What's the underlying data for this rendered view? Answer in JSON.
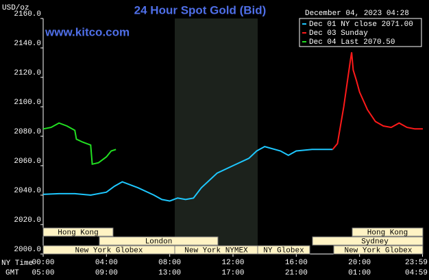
{
  "chart_data": {
    "type": "line",
    "title": "24 Hour Spot Gold (Bid)",
    "website": "www.kitco.com",
    "unit_label": "USD/oz",
    "timestamp": "December 04, 2023 04:28",
    "x_row_labels": [
      "NY Time",
      "GMT"
    ],
    "xlim": [
      0,
      24
    ],
    "xticks": [
      {
        "value": 0,
        "label": "00:00"
      },
      {
        "value": 4,
        "label": "04:00"
      },
      {
        "value": 8,
        "label": "08:00"
      },
      {
        "value": 12,
        "label": "12:00"
      },
      {
        "value": 16,
        "label": "16:00"
      },
      {
        "value": 20,
        "label": "20:00"
      },
      {
        "value": 23.98,
        "label": "23:59"
      }
    ],
    "xticks_gmt": [
      "05:00",
      "09:00",
      "13:00",
      "17:00",
      "21:00",
      "01:00",
      "04:59"
    ],
    "ylim": [
      2000,
      2160
    ],
    "yticks": [
      {
        "value": 2000,
        "label": "2000.0"
      },
      {
        "value": 2020,
        "label": "2020.0"
      },
      {
        "value": 2040,
        "label": "2040.0"
      },
      {
        "value": 2060,
        "label": "2060.0"
      },
      {
        "value": 2080,
        "label": "2080.0"
      },
      {
        "value": 2100,
        "label": "2100.0"
      },
      {
        "value": 2120,
        "label": "2120.0"
      },
      {
        "value": 2140,
        "label": "2140.0"
      },
      {
        "value": 2160,
        "label": "2160.0"
      }
    ],
    "sessions": [
      "Hong Kong",
      "Hong Kong",
      "London",
      "Sydney",
      "New York Globex",
      "New York NYMEX",
      "NY Globex",
      "New York Globex"
    ],
    "series": [
      {
        "name": "Dec 01 NY close 2071.00",
        "color": "#1ec8ff",
        "x": [
          0,
          1,
          2,
          3,
          4,
          4.5,
          5,
          6,
          7,
          7.5,
          8,
          8.5,
          9,
          9.5,
          10,
          11,
          12,
          13,
          13.5,
          14,
          15,
          15.5,
          16,
          17,
          18,
          18.3
        ],
        "values": [
          2040.5,
          2041,
          2041,
          2040,
          2042,
          2046,
          2049,
          2045,
          2040,
          2037,
          2036,
          2038,
          2037,
          2038,
          2045,
          2055,
          2060,
          2065,
          2070,
          2073,
          2070,
          2067,
          2070,
          2071,
          2071,
          2071
        ]
      },
      {
        "name": "Dec 03 Sunday",
        "color": "#ff1a1a",
        "x": [
          18.3,
          18.6,
          19,
          19.2,
          19.4,
          19.5,
          19.6,
          19.8,
          20,
          20.5,
          21,
          21.5,
          22,
          22.5,
          23,
          23.5,
          24
        ],
        "values": [
          2071,
          2075,
          2100,
          2115,
          2130,
          2137,
          2125,
          2118,
          2110,
          2098,
          2090,
          2087,
          2086,
          2089,
          2086,
          2085,
          2085
        ]
      },
      {
        "name": "Dec 04 Last 2070.50",
        "color": "#22e022",
        "x": [
          0,
          0.5,
          1,
          1.5,
          2,
          2.1,
          2.5,
          3,
          3.1,
          3.5,
          4,
          4.3,
          4.6
        ],
        "values": [
          2085,
          2086,
          2089,
          2087,
          2084,
          2078,
          2076,
          2074,
          2061,
          2062,
          2066,
          2070,
          2071
        ]
      }
    ]
  }
}
